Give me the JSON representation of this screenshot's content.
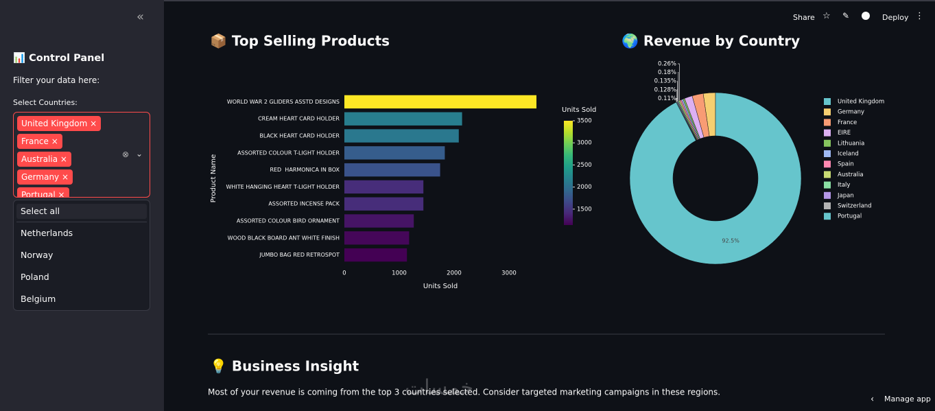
{
  "sidebar": {
    "title": "📊 Control Panel",
    "subtitle": "Filter your data here:",
    "select_label": "Select Countries:",
    "selected": [
      "United Kingdom",
      "France",
      "Australia",
      "Germany",
      "Portugal"
    ],
    "options": [
      "Select all",
      "Netherlands",
      "Norway",
      "Poland",
      "Belgium"
    ]
  },
  "toolbar": {
    "share": "Share",
    "deploy": "Deploy"
  },
  "chart_data": [
    {
      "type": "bar",
      "orientation": "horizontal",
      "title": "📦 Top Selling Products",
      "categories": [
        "WORLD WAR 2 GLIDERS ASSTD DESIGNS",
        "CREAM HEART CARD HOLDER",
        "BLACK HEART CARD HOLDER",
        "ASSORTED COLOUR T-LIGHT HOLDER",
        "RED  HARMONICA IN BOX",
        "WHITE HANGING HEART T-LIGHT HOLDER",
        "ASSORTED INCENSE PACK",
        "ASSORTED COLOUR BIRD ORNAMENT",
        "WOOD BLACK BOARD ANT WHITE FINISH",
        "JUMBO BAG RED RETROSPOT"
      ],
      "values": [
        3500,
        2145,
        2085,
        1830,
        1745,
        1440,
        1440,
        1265,
        1180,
        1140
      ],
      "xlim": [
        0,
        3500
      ],
      "xticks": [
        0,
        1000,
        2000,
        3000
      ],
      "xlabel": "Units Sold",
      "ylabel": "Product Name",
      "grid": false,
      "colorscale": [
        "#440154",
        "#482878",
        "#3e4989",
        "#31688e",
        "#26828e",
        "#1f9e89",
        "#35b779",
        "#6ece58",
        "#b5de2b",
        "#fde725"
      ],
      "colorbar": {
        "title": "Units Sold",
        "lim": [
          1140,
          3500
        ],
        "ticks": [
          1500,
          2000,
          2500,
          3000,
          3500
        ]
      }
    },
    {
      "type": "pie",
      "donut": true,
      "title": "🌍 Revenue by Country",
      "legend": "right",
      "categories": [
        "United Kingdom",
        "Germany",
        "France",
        "EIRE",
        "Lithuania",
        "Iceland",
        "Spain",
        "Australia",
        "Italy",
        "Japan",
        "Switzerland",
        "Portugal"
      ],
      "values": [
        92.5,
        2.3,
        2.1,
        1.5,
        0.31,
        0.3,
        0.28,
        0.26,
        0.18,
        0.135,
        0.128,
        0.11
      ],
      "value_labels": [
        "92.5%",
        null,
        null,
        null,
        null,
        null,
        null,
        "0.26%",
        "0.18%",
        "0.135%",
        "0.128%",
        "0.11%"
      ],
      "colors": [
        "#66c5cc",
        "#f6cf71",
        "#f89c74",
        "#dcb0f2",
        "#87c55f",
        "#9eb9f3",
        "#fe88b1",
        "#c9db74",
        "#8be0a4",
        "#b497e7",
        "#b3b3b3",
        "#66c5cc"
      ]
    }
  ],
  "insight": {
    "title": "💡 Business Insight",
    "text": "Most of your revenue is coming from the top 3 countries selected. Consider targeted marketing campaigns in these regions."
  },
  "footer": {
    "manage": "Manage app"
  },
  "watermark": "خمسات"
}
